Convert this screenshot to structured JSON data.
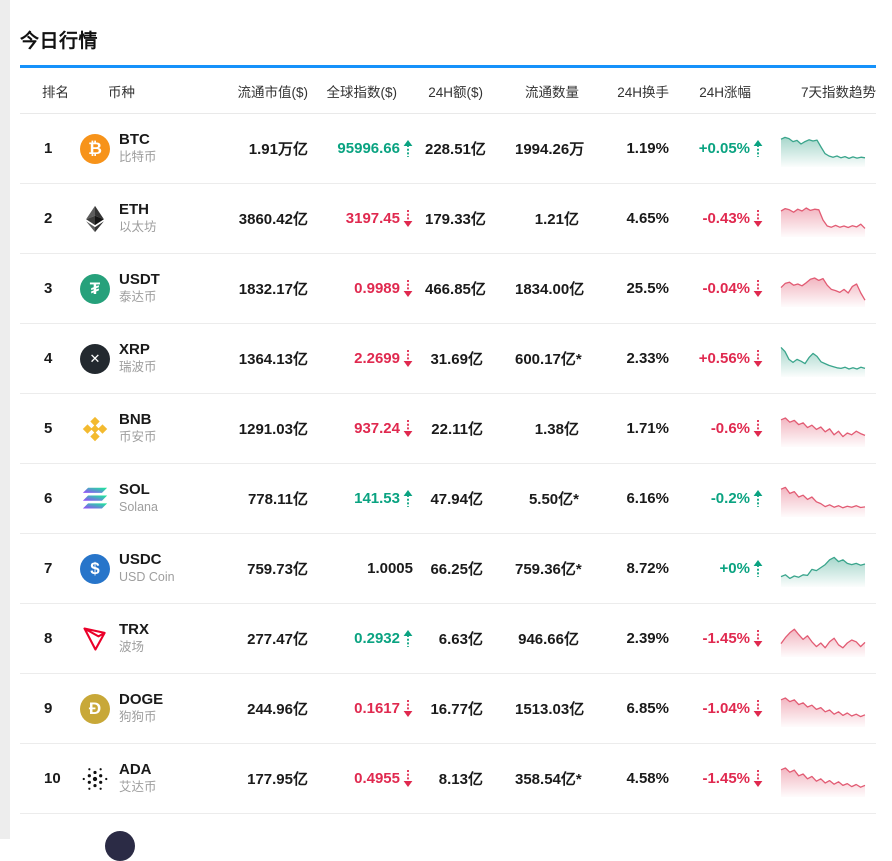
{
  "page": {
    "title": "今日行情",
    "accent_blue": "#1692fb",
    "up_color": "#0aa381",
    "down_color": "#e0294f",
    "spark_up": "#3aa58c",
    "spark_down": "#e25c74"
  },
  "table": {
    "headers": {
      "rank": "排名",
      "coin": "币种",
      "market_cap": "流通市值($)",
      "index": "全球指数($)",
      "volume": "24H额($)",
      "supply": "流通数量",
      "turnover": "24H换手",
      "change": "24H涨幅",
      "trend": "7天指数趋势"
    },
    "rows": [
      {
        "rank": "1",
        "symbol": "BTC",
        "name": "比特币",
        "icon": "btc",
        "market_cap": "1.91万亿",
        "index": "95996.66",
        "index_dir": "up",
        "index_color": "up",
        "volume": "228.51亿",
        "supply": "1994.26万",
        "turnover": "1.19%",
        "change": "+0.05%",
        "change_dir": "up",
        "change_color": "up",
        "trend_color": "up",
        "trend": [
          86,
          92,
          88,
          78,
          82,
          70,
          78,
          84,
          80,
          83,
          60,
          38,
          30,
          26,
          30,
          24,
          28,
          22,
          27,
          23,
          26,
          24
        ]
      },
      {
        "rank": "2",
        "symbol": "ETH",
        "name": "以太坊",
        "icon": "eth",
        "market_cap": "3860.42亿",
        "index": "3197.45",
        "index_dir": "down",
        "index_color": "down",
        "volume": "179.33亿",
        "supply": "1.21亿",
        "turnover": "4.65%",
        "change": "-0.43%",
        "change_dir": "down",
        "change_color": "down",
        "trend_color": "down",
        "trend": [
          80,
          88,
          84,
          76,
          86,
          80,
          90,
          82,
          86,
          84,
          50,
          30,
          26,
          32,
          26,
          30,
          25,
          31,
          27,
          36,
          22
        ]
      },
      {
        "rank": "3",
        "symbol": "USDT",
        "name": "泰达币",
        "icon": "usdt",
        "market_cap": "1832.17亿",
        "index": "0.9989",
        "index_dir": "down",
        "index_color": "down",
        "volume": "466.85亿",
        "supply": "1834.00亿",
        "turnover": "25.5%",
        "change": "-0.04%",
        "change_dir": "down",
        "change_color": "down",
        "trend_color": "down",
        "trend": [
          58,
          72,
          76,
          66,
          70,
          64,
          74,
          86,
          90,
          82,
          88,
          66,
          52,
          48,
          42,
          52,
          40,
          62,
          70,
          40,
          16
        ]
      },
      {
        "rank": "4",
        "symbol": "XRP",
        "name": "瑞波币",
        "icon": "xrp",
        "market_cap": "1364.13亿",
        "index": "2.2699",
        "index_dir": "down",
        "index_color": "down",
        "volume": "31.69亿",
        "supply": "600.17亿*",
        "turnover": "2.33%",
        "change": "+0.56%",
        "change_dir": "down",
        "change_color": "down",
        "trend_color": "up",
        "trend": [
          92,
          78,
          52,
          42,
          52,
          46,
          38,
          58,
          72,
          62,
          44,
          38,
          32,
          28,
          24,
          22,
          26,
          20,
          24,
          20,
          26,
          22
        ]
      },
      {
        "rank": "5",
        "symbol": "BNB",
        "name": "币安币",
        "icon": "bnb",
        "market_cap": "1291.03亿",
        "index": "937.24",
        "index_dir": "down",
        "index_color": "down",
        "volume": "22.11亿",
        "supply": "1.38亿",
        "turnover": "1.71%",
        "change": "-0.6%",
        "change_dir": "down",
        "change_color": "down",
        "trend_color": "down",
        "trend": [
          84,
          90,
          76,
          82,
          68,
          74,
          58,
          66,
          52,
          60,
          44,
          54,
          34,
          46,
          28,
          40,
          34,
          46,
          38,
          32
        ]
      },
      {
        "rank": "6",
        "symbol": "SOL",
        "name": "Solana",
        "icon": "sol",
        "market_cap": "778.11亿",
        "index": "141.53",
        "index_dir": "up",
        "index_color": "up",
        "volume": "47.94亿",
        "supply": "5.50亿*",
        "turnover": "6.16%",
        "change": "-0.2%",
        "change_dir": "up",
        "change_color": "up",
        "trend_color": "down",
        "trend": [
          86,
          92,
          72,
          78,
          60,
          66,
          52,
          60,
          44,
          38,
          28,
          34,
          26,
          31,
          24,
          29,
          26,
          31,
          25,
          27
        ]
      },
      {
        "rank": "7",
        "symbol": "USDC",
        "name": "USD Coin",
        "icon": "usdc",
        "market_cap": "759.73亿",
        "index": "1.0005",
        "index_dir": "none",
        "index_color": "neutral",
        "volume": "66.25亿",
        "supply": "759.36亿*",
        "turnover": "8.72%",
        "change": "+0%",
        "change_dir": "up",
        "change_color": "up",
        "trend_color": "up",
        "trend": [
          28,
          34,
          22,
          30,
          26,
          34,
          32,
          52,
          48,
          58,
          68,
          84,
          92,
          78,
          84,
          72,
          68,
          72,
          66,
          70
        ]
      },
      {
        "rank": "8",
        "symbol": "TRX",
        "name": "波场",
        "icon": "trx",
        "market_cap": "277.47亿",
        "index": "0.2932",
        "index_dir": "up",
        "index_color": "up",
        "volume": "6.63亿",
        "supply": "946.66亿",
        "turnover": "2.39%",
        "change": "-1.45%",
        "change_dir": "down",
        "change_color": "down",
        "trend_color": "down",
        "trend": [
          38,
          58,
          74,
          86,
          68,
          52,
          64,
          44,
          28,
          40,
          24,
          44,
          56,
          34,
          24,
          40,
          50,
          44,
          28,
          42
        ]
      },
      {
        "rank": "9",
        "symbol": "DOGE",
        "name": "狗狗币",
        "icon": "doge",
        "market_cap": "244.96亿",
        "index": "0.1617",
        "index_dir": "down",
        "index_color": "down",
        "volume": "16.77亿",
        "supply": "1513.03亿",
        "turnover": "6.85%",
        "change": "-1.04%",
        "change_dir": "down",
        "change_color": "down",
        "trend_color": "down",
        "trend": [
          84,
          90,
          78,
          84,
          68,
          74,
          60,
          66,
          52,
          58,
          44,
          50,
          36,
          44,
          32,
          40,
          30,
          36,
          28,
          34
        ]
      },
      {
        "rank": "10",
        "symbol": "ADA",
        "name": "艾达币",
        "icon": "ada",
        "market_cap": "177.95亿",
        "index": "0.4955",
        "index_dir": "down",
        "index_color": "down",
        "volume": "8.13亿",
        "supply": "358.54亿*",
        "turnover": "4.58%",
        "change": "-1.45%",
        "change_dir": "down",
        "change_color": "down",
        "trend_color": "down",
        "trend": [
          84,
          90,
          76,
          83,
          64,
          70,
          54,
          62,
          46,
          54,
          40,
          48,
          36,
          44,
          32,
          38,
          28,
          35,
          26,
          32
        ]
      }
    ]
  }
}
